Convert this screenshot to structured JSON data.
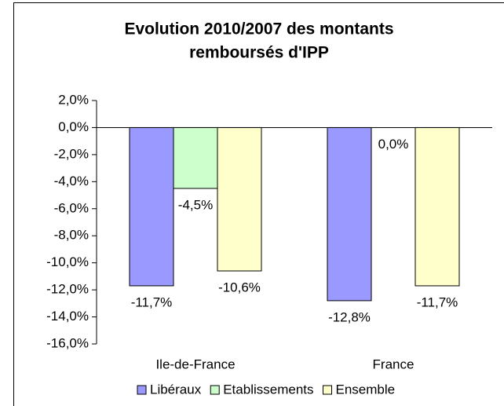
{
  "chart_data": {
    "type": "bar",
    "title": [
      "Evolution 2010/2007 des montants",
      "remboursés d'IPP"
    ],
    "categories": [
      "Ile-de-France",
      "France"
    ],
    "series": [
      {
        "name": "Libéraux",
        "color": "#9999ff",
        "values": [
          -11.7,
          -12.8
        ],
        "value_labels": [
          "-11,7%",
          "-12,8%"
        ]
      },
      {
        "name": "Etablissements",
        "color": "#ccffcc",
        "values": [
          -4.5,
          0.0
        ],
        "value_labels": [
          "-4,5%",
          "0,0%"
        ]
      },
      {
        "name": "Ensemble",
        "color": "#ffffcc",
        "values": [
          -10.6,
          -11.7
        ],
        "value_labels": [
          "-10,6%",
          "-11,7%"
        ]
      }
    ],
    "ylim": [
      -16,
      2
    ],
    "yticks": [
      {
        "value": 2,
        "label": "2,0%"
      },
      {
        "value": 0,
        "label": "0,0%"
      },
      {
        "value": -2,
        "label": "-2,0%"
      },
      {
        "value": -4,
        "label": "-4,0%"
      },
      {
        "value": -6,
        "label": "-6,0%"
      },
      {
        "value": -8,
        "label": "-8,0%"
      },
      {
        "value": -10,
        "label": "-10,0%"
      },
      {
        "value": -12,
        "label": "-12,0%"
      },
      {
        "value": -14,
        "label": "-14,0%"
      },
      {
        "value": -16,
        "label": "-16,0%"
      }
    ],
    "legend": "bottom"
  }
}
